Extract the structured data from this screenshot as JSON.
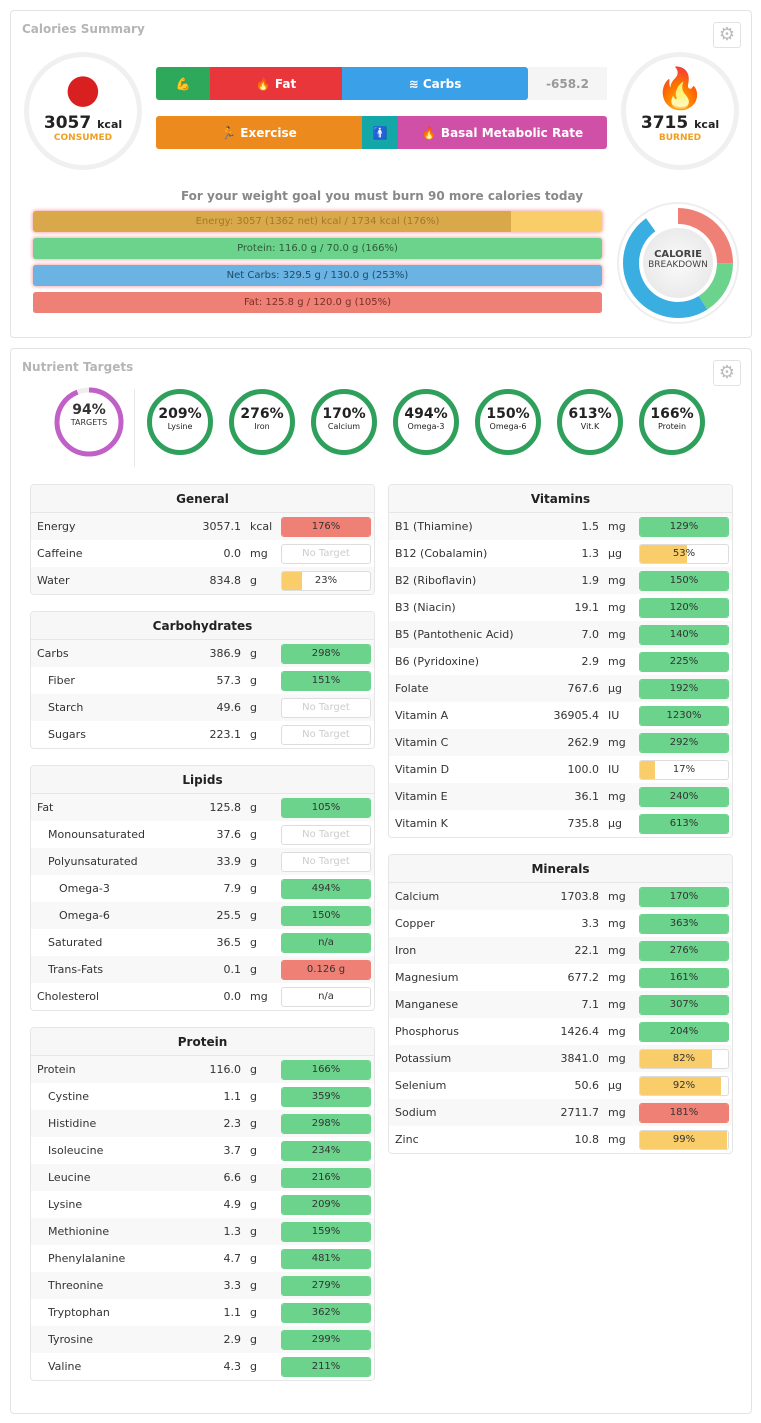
{
  "summary": {
    "title": "Calories Summary",
    "consumed": {
      "value": "3057",
      "unit": "kcal",
      "label": "CONSUMED"
    },
    "burned": {
      "value": "3715",
      "unit": "kcal",
      "label": "BURNED"
    },
    "intake_segments": {
      "fat": "Fat",
      "carbs": "Carbs",
      "balance": "-658.2"
    },
    "burn_segments": {
      "exercise": "Exercise",
      "bmr": "Basal Metabolic Rate"
    },
    "message": "For your weight goal you must burn 90 more calories today",
    "macros": [
      {
        "text": "Energy: 3057 (1362 net) kcal / 1734 kcal (176%)",
        "fill_pct": 84,
        "color": "#d9a84a",
        "bg": "#f8cd6a",
        "textcolor": "#a0782a"
      },
      {
        "text": "Protein: 116.0 g / 70.0 g (166%)",
        "fill_pct": 100,
        "color": "#6cd38c",
        "bg": "#6cd38c",
        "textcolor": "#2a5a36"
      },
      {
        "text": "Net Carbs: 329.5 g / 130.0 g (253%)",
        "fill_pct": 100,
        "color": "#6ab3e2",
        "bg": "#6ab3e2",
        "textcolor": "#1e4a6a"
      },
      {
        "text": "Fat: 125.8 g / 120.0 g (105%)",
        "fill_pct": 100,
        "color": "#ee8075",
        "bg": "#ee8075",
        "textcolor": "#7a2e28"
      }
    ],
    "breakdown": {
      "label1": "CALORIE",
      "label2": "BREAKDOWN",
      "fat_pct": 35,
      "protein_pct": 16,
      "carbs_pct": 49,
      "colors": {
        "fat": "#ee8075",
        "protein": "#6cd38c",
        "carbs": "#3aaee0"
      }
    }
  },
  "targets": {
    "title": "Nutrient Targets",
    "overall": {
      "pct": "94%",
      "label": "TARGETS",
      "fraction": 0.94
    },
    "circles": [
      {
        "pct": "209%",
        "label": "Lysine"
      },
      {
        "pct": "276%",
        "label": "Iron"
      },
      {
        "pct": "170%",
        "label": "Calcium"
      },
      {
        "pct": "494%",
        "label": "Omega-3"
      },
      {
        "pct": "150%",
        "label": "Omega-6"
      },
      {
        "pct": "613%",
        "label": "Vit.K"
      },
      {
        "pct": "166%",
        "label": "Protein"
      }
    ]
  },
  "tables": [
    {
      "title": "General",
      "rows": [
        [
          "Energy",
          "3057.1",
          "kcal",
          "176%",
          100,
          "red",
          0
        ],
        [
          "Caffeine",
          "0.0",
          "mg",
          "No Target",
          0,
          "none",
          0
        ],
        [
          "Water",
          "834.8",
          "g",
          "23%",
          23,
          "yellow",
          0
        ]
      ]
    },
    {
      "title": "Carbohydrates",
      "rows": [
        [
          "Carbs",
          "386.9",
          "g",
          "298%",
          100,
          "green",
          0
        ],
        [
          "Fiber",
          "57.3",
          "g",
          "151%",
          100,
          "green",
          1
        ],
        [
          "Starch",
          "49.6",
          "g",
          "No Target",
          0,
          "none",
          1
        ],
        [
          "Sugars",
          "223.1",
          "g",
          "No Target",
          0,
          "none",
          1
        ]
      ]
    },
    {
      "title": "Lipids",
      "rows": [
        [
          "Fat",
          "125.8",
          "g",
          "105%",
          100,
          "green",
          0
        ],
        [
          "Monounsaturated",
          "37.6",
          "g",
          "No Target",
          0,
          "none",
          1
        ],
        [
          "Polyunsaturated",
          "33.9",
          "g",
          "No Target",
          0,
          "none",
          1
        ],
        [
          "Omega-3",
          "7.9",
          "g",
          "494%",
          100,
          "green",
          2
        ],
        [
          "Omega-6",
          "25.5",
          "g",
          "150%",
          100,
          "green",
          2
        ],
        [
          "Saturated",
          "36.5",
          "g",
          "n/a",
          100,
          "green",
          1
        ],
        [
          "Trans-Fats",
          "0.1",
          "g",
          "0.126 g",
          100,
          "red",
          1
        ],
        [
          "Cholesterol",
          "0.0",
          "mg",
          "n/a",
          0,
          "plain",
          0
        ]
      ]
    },
    {
      "title": "Protein",
      "rows": [
        [
          "Protein",
          "116.0",
          "g",
          "166%",
          100,
          "green",
          0
        ],
        [
          "Cystine",
          "1.1",
          "g",
          "359%",
          100,
          "green",
          1
        ],
        [
          "Histidine",
          "2.3",
          "g",
          "298%",
          100,
          "green",
          1
        ],
        [
          "Isoleucine",
          "3.7",
          "g",
          "234%",
          100,
          "green",
          1
        ],
        [
          "Leucine",
          "6.6",
          "g",
          "216%",
          100,
          "green",
          1
        ],
        [
          "Lysine",
          "4.9",
          "g",
          "209%",
          100,
          "green",
          1
        ],
        [
          "Methionine",
          "1.3",
          "g",
          "159%",
          100,
          "green",
          1
        ],
        [
          "Phenylalanine",
          "4.7",
          "g",
          "481%",
          100,
          "green",
          1
        ],
        [
          "Threonine",
          "3.3",
          "g",
          "279%",
          100,
          "green",
          1
        ],
        [
          "Tryptophan",
          "1.1",
          "g",
          "362%",
          100,
          "green",
          1
        ],
        [
          "Tyrosine",
          "2.9",
          "g",
          "299%",
          100,
          "green",
          1
        ],
        [
          "Valine",
          "4.3",
          "g",
          "211%",
          100,
          "green",
          1
        ]
      ]
    },
    {
      "title": "Vitamins",
      "rows": [
        [
          "B1 (Thiamine)",
          "1.5",
          "mg",
          "129%",
          100,
          "green",
          0
        ],
        [
          "B12 (Cobalamin)",
          "1.3",
          "µg",
          "53%",
          53,
          "yellow",
          0
        ],
        [
          "B2 (Riboflavin)",
          "1.9",
          "mg",
          "150%",
          100,
          "green",
          0
        ],
        [
          "B3 (Niacin)",
          "19.1",
          "mg",
          "120%",
          100,
          "green",
          0
        ],
        [
          "B5 (Pantothenic Acid)",
          "7.0",
          "mg",
          "140%",
          100,
          "green",
          0
        ],
        [
          "B6 (Pyridoxine)",
          "2.9",
          "mg",
          "225%",
          100,
          "green",
          0
        ],
        [
          "Folate",
          "767.6",
          "µg",
          "192%",
          100,
          "green",
          0
        ],
        [
          "Vitamin A",
          "36905.4",
          "IU",
          "1230%",
          100,
          "green",
          0
        ],
        [
          "Vitamin C",
          "262.9",
          "mg",
          "292%",
          100,
          "green",
          0
        ],
        [
          "Vitamin D",
          "100.0",
          "IU",
          "17%",
          17,
          "yellow",
          0
        ],
        [
          "Vitamin E",
          "36.1",
          "mg",
          "240%",
          100,
          "green",
          0
        ],
        [
          "Vitamin K",
          "735.8",
          "µg",
          "613%",
          100,
          "green",
          0
        ]
      ]
    },
    {
      "title": "Minerals",
      "rows": [
        [
          "Calcium",
          "1703.8",
          "mg",
          "170%",
          100,
          "green",
          0
        ],
        [
          "Copper",
          "3.3",
          "mg",
          "363%",
          100,
          "green",
          0
        ],
        [
          "Iron",
          "22.1",
          "mg",
          "276%",
          100,
          "green",
          0
        ],
        [
          "Magnesium",
          "677.2",
          "mg",
          "161%",
          100,
          "green",
          0
        ],
        [
          "Manganese",
          "7.1",
          "mg",
          "307%",
          100,
          "green",
          0
        ],
        [
          "Phosphorus",
          "1426.4",
          "mg",
          "204%",
          100,
          "green",
          0
        ],
        [
          "Potassium",
          "3841.0",
          "mg",
          "82%",
          82,
          "yellow",
          0
        ],
        [
          "Selenium",
          "50.6",
          "µg",
          "92%",
          92,
          "yellow",
          0
        ],
        [
          "Sodium",
          "2711.7",
          "mg",
          "181%",
          100,
          "red",
          0
        ],
        [
          "Zinc",
          "10.8",
          "mg",
          "99%",
          99,
          "yellow",
          0
        ]
      ]
    }
  ],
  "colors": {
    "green": "#6cd38c",
    "red": "#ee8075",
    "yellow": "#f8cd6a"
  }
}
